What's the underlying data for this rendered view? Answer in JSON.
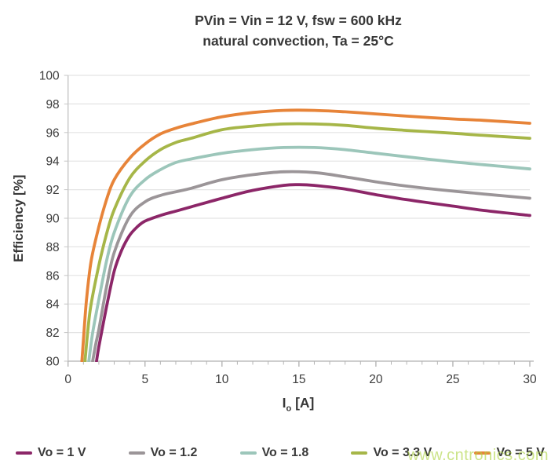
{
  "title": {
    "line1": "PVin = Vin = 12 V, fsw = 600 kHz",
    "line2": "natural convection, Ta = 25°C"
  },
  "watermark": "www.cntronics.com",
  "chart_data": {
    "type": "line",
    "title": "PVin = Vin = 12 V, fsw = 600 kHz — natural convection, Ta = 25°C",
    "xlabel": "Io [A]",
    "xlabel_parts": {
      "base": "I",
      "sub": "o",
      "unit": " [A]"
    },
    "ylabel": "Efficiency [%]",
    "xlim": [
      0,
      30
    ],
    "ylim": [
      80,
      100
    ],
    "xticks": [
      0,
      5,
      10,
      15,
      20,
      25,
      30
    ],
    "xminor_step": 1,
    "yticks": [
      80,
      82,
      84,
      86,
      88,
      90,
      92,
      94,
      96,
      98,
      100
    ],
    "grid": "horizontal-only",
    "legend_position": "bottom",
    "axis_color": "#bfbfbf",
    "grid_color": "#e4e4e4",
    "tick_label_color": "#3c3c3c",
    "series": [
      {
        "label": "Vo = 1 V",
        "color": "#8c2668",
        "x": [
          1.85,
          2,
          2.5,
          3,
          3.5,
          4,
          4.5,
          5,
          6,
          7,
          8,
          10,
          12,
          14,
          15,
          16,
          18,
          20,
          22,
          25,
          27,
          30
        ],
        "y": [
          80.0,
          81.0,
          83.8,
          86.3,
          87.8,
          88.8,
          89.4,
          89.8,
          90.2,
          90.5,
          90.8,
          91.4,
          91.95,
          92.3,
          92.35,
          92.3,
          92.05,
          91.65,
          91.3,
          90.85,
          90.55,
          90.2
        ]
      },
      {
        "label": "Vo = 1.2",
        "color": "#9b9598",
        "x": [
          1.6,
          1.8,
          2,
          2.5,
          3,
          4,
          5,
          6,
          7,
          8,
          10,
          12,
          14,
          16,
          18,
          20,
          22,
          25,
          27,
          30
        ],
        "y": [
          80.0,
          81.2,
          82.2,
          85.2,
          87.6,
          90.1,
          91.15,
          91.6,
          91.85,
          92.1,
          92.7,
          93.05,
          93.25,
          93.2,
          92.9,
          92.55,
          92.25,
          91.9,
          91.7,
          91.4
        ]
      },
      {
        "label": "Vo = 1.8",
        "color": "#9cc6ba",
        "x": [
          1.35,
          1.6,
          2,
          2.5,
          3,
          4,
          5,
          6,
          7,
          8,
          10,
          12,
          14,
          16,
          18,
          20,
          22,
          25,
          27,
          30
        ],
        "y": [
          80.0,
          82.0,
          84.3,
          87.0,
          89.0,
          91.5,
          92.7,
          93.4,
          93.9,
          94.15,
          94.55,
          94.8,
          94.95,
          94.95,
          94.8,
          94.55,
          94.3,
          93.95,
          93.75,
          93.45
        ]
      },
      {
        "label": "Vo = 3.3 V",
        "color": "#a6b648",
        "x": [
          1.1,
          1.3,
          1.5,
          2,
          2.5,
          3,
          4,
          5,
          6,
          7,
          8,
          10,
          12,
          14,
          16,
          18,
          20,
          22,
          25,
          27,
          30
        ],
        "y": [
          80.0,
          82.3,
          84.0,
          86.7,
          88.9,
          90.6,
          92.8,
          94.0,
          94.8,
          95.3,
          95.6,
          96.2,
          96.45,
          96.6,
          96.6,
          96.5,
          96.3,
          96.15,
          95.95,
          95.8,
          95.6
        ]
      },
      {
        "label": "Vo = 5 V",
        "color": "#e78439",
        "x": [
          0.9,
          1.0,
          1.2,
          1.5,
          2,
          2.5,
          3,
          4,
          5,
          6,
          7,
          8,
          10,
          12,
          14,
          16,
          18,
          20,
          22,
          25,
          27,
          30
        ],
        "y": [
          80.0,
          81.5,
          84.3,
          87.0,
          89.4,
          91.3,
          92.7,
          94.2,
          95.2,
          95.9,
          96.3,
          96.6,
          97.1,
          97.4,
          97.55,
          97.55,
          97.45,
          97.3,
          97.15,
          96.95,
          96.85,
          96.65
        ]
      }
    ]
  }
}
